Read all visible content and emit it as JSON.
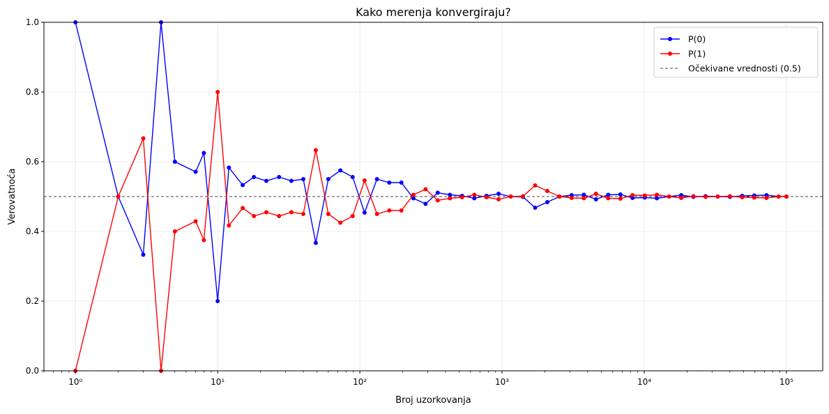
{
  "chart_data": {
    "type": "line",
    "title": "Kako merenja konvergiraju?",
    "xlabel": "Broj uzorkovanja",
    "ylabel": "Verovatnoća",
    "xscale": "log",
    "xlim": [
      0.6,
      180000
    ],
    "ylim": [
      0,
      1
    ],
    "grid": true,
    "legend_position": "top-right",
    "x_ticks": [
      {
        "value": 1,
        "label": "10⁰"
      },
      {
        "value": 10,
        "label": "10¹"
      },
      {
        "value": 100,
        "label": "10²"
      },
      {
        "value": 1000,
        "label": "10³"
      },
      {
        "value": 10000,
        "label": "10⁴"
      },
      {
        "value": 100000,
        "label": "10⁵"
      }
    ],
    "y_ticks": [
      {
        "value": 0,
        "label": "0.0"
      },
      {
        "value": 0.2,
        "label": "0.2"
      },
      {
        "value": 0.4,
        "label": "0.4"
      },
      {
        "value": 0.6,
        "label": "0.6"
      },
      {
        "value": 0.8,
        "label": "0.8"
      },
      {
        "value": 1.0,
        "label": "1.0"
      }
    ],
    "x": [
      1,
      2,
      3,
      4,
      5,
      7,
      8,
      10,
      12,
      15,
      18,
      22,
      27,
      33,
      40,
      49,
      60,
      73,
      89,
      108,
      132,
      161,
      196,
      238,
      290,
      353,
      430,
      524,
      638,
      777,
      946,
      1152,
      1403,
      1709,
      2081,
      2535,
      3087,
      3760,
      4580,
      5578,
      6793,
      8273,
      10076,
      12272,
      14946,
      18203,
      22170,
      27000,
      32884,
      40050,
      48778,
      59406,
      72350,
      88115,
      100000
    ],
    "series": [
      {
        "name": "P(0)",
        "color": "#0000ff",
        "marker": "circle",
        "values": [
          1.0,
          0.5,
          0.333,
          1.0,
          0.6,
          0.571,
          0.625,
          0.2,
          0.583,
          0.533,
          0.556,
          0.545,
          0.556,
          0.545,
          0.55,
          0.367,
          0.55,
          0.575,
          0.556,
          0.454,
          0.55,
          0.54,
          0.54,
          0.495,
          0.479,
          0.511,
          0.505,
          0.502,
          0.495,
          0.502,
          0.508,
          0.5,
          0.499,
          0.468,
          0.484,
          0.5,
          0.504,
          0.505,
          0.492,
          0.505,
          0.506,
          0.496,
          0.497,
          0.495,
          0.5,
          0.504,
          0.499,
          0.501,
          0.5,
          0.499,
          0.502,
          0.503,
          0.504,
          0.5,
          0.5
        ]
      },
      {
        "name": "P(1)",
        "color": "#ff0000",
        "marker": "circle",
        "values": [
          0.0,
          0.5,
          0.667,
          0.0,
          0.4,
          0.429,
          0.375,
          0.8,
          0.417,
          0.467,
          0.444,
          0.455,
          0.444,
          0.455,
          0.45,
          0.633,
          0.45,
          0.425,
          0.444,
          0.546,
          0.45,
          0.46,
          0.46,
          0.505,
          0.521,
          0.489,
          0.495,
          0.498,
          0.505,
          0.498,
          0.492,
          0.5,
          0.501,
          0.532,
          0.516,
          0.5,
          0.496,
          0.495,
          0.508,
          0.495,
          0.494,
          0.504,
          0.503,
          0.505,
          0.5,
          0.496,
          0.501,
          0.499,
          0.5,
          0.501,
          0.498,
          0.497,
          0.496,
          0.5,
          0.5
        ]
      }
    ],
    "reference_line": {
      "label": "Očekivane vrednosti (0.5)",
      "value": 0.5,
      "color": "#444444",
      "style": "dashed"
    }
  }
}
